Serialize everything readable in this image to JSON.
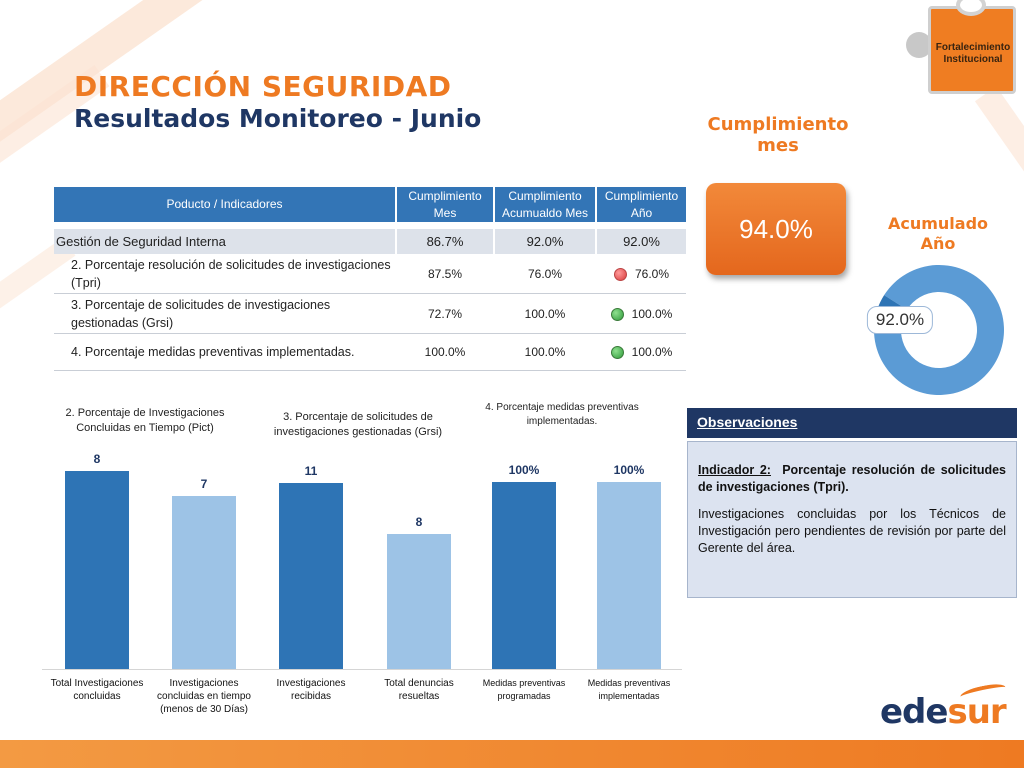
{
  "header": {
    "title": "DIRECCIÓN SEGURIDAD",
    "subtitle": "Resultados Monitoreo - Junio"
  },
  "logo": {
    "text": "Fortalecimiento Institucional",
    "brand_left": "ede",
    "brand_right": "sur"
  },
  "colors": {
    "orange": "#ee7a22",
    "navy": "#1f3764",
    "blue_dark": "#2e74b5",
    "blue_light": "#9dc3e6"
  },
  "table": {
    "headers": [
      "Poducto / Indicadores",
      "Cumplimiento Mes",
      "Cumplimiento Acumualdo Mes",
      "Cumplimiento Año"
    ],
    "group": {
      "label": "Gestión de Seguridad Interna",
      "mes": "86.7%",
      "acum": "92.0%",
      "anio": "92.0%"
    },
    "rows": [
      {
        "label": "2. Porcentaje resolución de solicitudes de investigaciones (Tpri)",
        "mes": "87.5%",
        "acum": "76.0%",
        "status": "red",
        "anio": "76.0%"
      },
      {
        "label": "3. Porcentaje de solicitudes de investigaciones gestionadas (Grsi)",
        "mes": "72.7%",
        "acum": "100.0%",
        "status": "green",
        "anio": "100.0%"
      },
      {
        "label": "4. Porcentaje medidas preventivas implementadas.",
        "mes": "100.0%",
        "acum": "100.0%",
        "status": "green",
        "anio": "100.0%"
      }
    ]
  },
  "kpi": {
    "mes_label": "Cumplimiento mes",
    "mes_value": "94.0%",
    "anio_label": "Acumulado Año",
    "anio_value": "92.0%",
    "anio_fraction": 0.92
  },
  "observations": {
    "header": "Observaciones",
    "indicator_label": "Indicador 2:",
    "indicator_text": "Porcentaje resolución de solicitudes de investigaciones (Tpri).",
    "note": "Investigaciones concluidas por los Técnicos de Investigación pero pendientes de revisión por parte del Gerente del área."
  },
  "chart_data": {
    "type": "bar",
    "groups": [
      {
        "title": "2. Porcentaje de Investigaciones Concluidas en Tiempo (Pict)",
        "bars": [
          {
            "category": "Total Investigaciones concluidas",
            "value": 8,
            "label": "8",
            "color": "#2e74b5"
          },
          {
            "category": "Investigaciones concluidas en tiempo (menos de 30 Días)",
            "value": 7,
            "label": "7",
            "color": "#9dc3e6"
          }
        ]
      },
      {
        "title": "3. Porcentaje de solicitudes de investigaciones gestionadas (Grsi)",
        "bars": [
          {
            "category": "Investigaciones recibidas",
            "value": 11,
            "label": "11",
            "color": "#2e74b5"
          },
          {
            "category": "Total denuncias resueltas",
            "value": 8,
            "label": "8",
            "color": "#9dc3e6"
          }
        ]
      },
      {
        "title": "4. Porcentaje medidas preventivas implementadas.",
        "bars": [
          {
            "category": "Medidas preventivas programadas",
            "value": 100,
            "label": "100%",
            "color": "#2e74b5"
          },
          {
            "category": "Medidas preventivas implementadas",
            "value": 100,
            "label": "100%",
            "color": "#9dc3e6"
          }
        ]
      }
    ]
  }
}
